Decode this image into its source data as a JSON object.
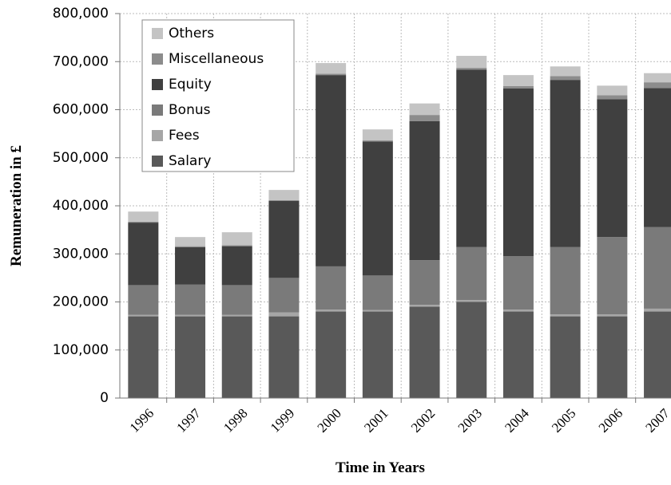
{
  "chart_data": {
    "type": "stacked_bar",
    "y_label": "Remuneration in £",
    "x_label": "Time in Years",
    "categories": [
      "1996",
      "1997",
      "1998",
      "1999",
      "2000",
      "2001",
      "2002",
      "2003",
      "2004",
      "2005",
      "2006",
      "2007"
    ],
    "series": [
      {
        "name": "Salary",
        "color": "#595959",
        "values": [
          170000,
          170000,
          170000,
          170000,
          180000,
          180000,
          190000,
          200000,
          180000,
          170000,
          170000,
          180000
        ]
      },
      {
        "name": "Fees",
        "color": "#a6a6a6",
        "values": [
          3000,
          3000,
          3000,
          8000,
          4000,
          3000,
          4000,
          4000,
          4000,
          4000,
          4000,
          6000
        ]
      },
      {
        "name": "Bonus",
        "color": "#7a7a7a",
        "values": [
          62000,
          63000,
          62000,
          72000,
          90000,
          72000,
          93000,
          110000,
          111000,
          140000,
          161000,
          170000
        ]
      },
      {
        "name": "Equity",
        "color": "#404040",
        "values": [
          130000,
          78000,
          81000,
          160000,
          398000,
          279000,
          289000,
          369000,
          349000,
          348000,
          287000,
          289000
        ]
      },
      {
        "name": "Miscellaneous",
        "color": "#8c8c8c",
        "values": [
          2000,
          2000,
          2000,
          2000,
          3000,
          2000,
          13000,
          4000,
          5000,
          8000,
          8000,
          12000
        ]
      },
      {
        "name": "Others",
        "color": "#c4c4c4",
        "values": [
          21000,
          19000,
          27000,
          21000,
          22000,
          23000,
          24000,
          25000,
          23000,
          20000,
          20000,
          19000
        ]
      }
    ],
    "ylim": [
      0,
      800000
    ],
    "yticks": [
      0,
      {
        "value": 100000,
        "label": "100,000"
      },
      {
        "value": 200000,
        "label": "200,000"
      },
      {
        "value": 300000,
        "label": "300,000"
      },
      {
        "value": 400000,
        "label": "400,000"
      },
      {
        "value": 500000,
        "label": "500,000"
      },
      {
        "value": 600000,
        "label": "600,000"
      },
      {
        "value": 700000,
        "label": "700,000"
      },
      {
        "value": 800000,
        "label": "800,000"
      }
    ],
    "grid": true,
    "legend": "upper-left"
  }
}
